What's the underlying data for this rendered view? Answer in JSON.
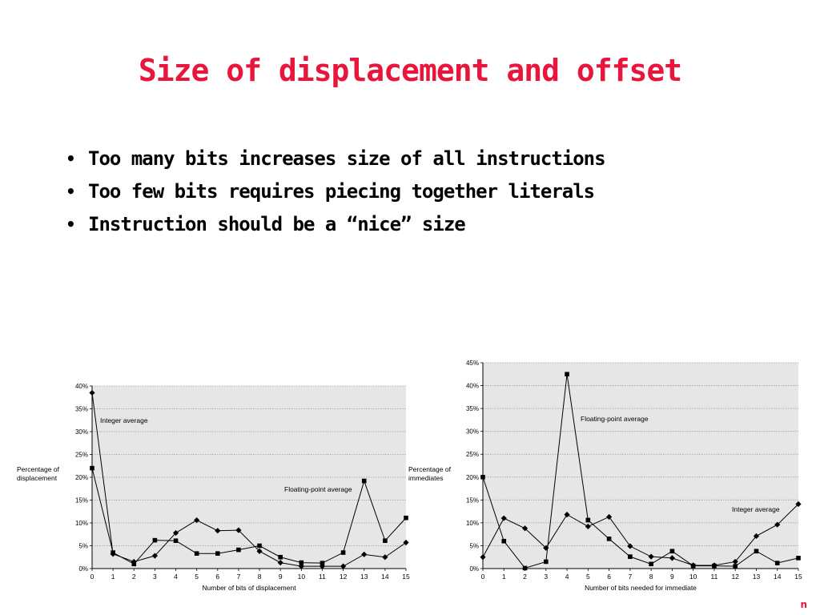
{
  "slide": {
    "title": "Size of displacement and offset",
    "bullets": [
      "Too many bits increases size of all instructions",
      "Too few bits requires piecing together literals",
      "Instruction should be a “nice” size"
    ],
    "corner_mark": "n"
  },
  "chart_data": [
    {
      "type": "line",
      "xlabel": "Number of bits of displacement",
      "ylabel": [
        "Percentage of",
        "displacement"
      ],
      "x": [
        0,
        1,
        2,
        3,
        4,
        5,
        6,
        7,
        8,
        9,
        10,
        11,
        12,
        13,
        14,
        15
      ],
      "ylim": [
        0,
        40
      ],
      "yticks": [
        "0%",
        "5%",
        "10%",
        "15%",
        "20%",
        "25%",
        "30%",
        "35%",
        "40%"
      ],
      "grid": true,
      "series": [
        {
          "name": "Integer average",
          "marker": "diamond",
          "values": [
            38.5,
            3.2,
            1.5,
            2.8,
            7.8,
            10.6,
            8.3,
            8.4,
            3.8,
            1.3,
            0.5,
            0.5,
            0.5,
            3.1,
            2.5,
            5.7
          ]
        },
        {
          "name": "Floating-point average",
          "marker": "square",
          "values": [
            22.0,
            3.5,
            1.0,
            6.2,
            6.1,
            3.3,
            3.3,
            4.1,
            5.0,
            2.5,
            1.3,
            1.2,
            3.5,
            19.2,
            6.1,
            11.1
          ]
        }
      ]
    },
    {
      "type": "line",
      "xlabel": "Number of bits needed for immediate",
      "ylabel": [
        "Percentage of",
        "immediates"
      ],
      "x": [
        0,
        1,
        2,
        3,
        4,
        5,
        6,
        7,
        8,
        9,
        10,
        11,
        12,
        13,
        14,
        15
      ],
      "ylim": [
        0,
        45
      ],
      "yticks": [
        "0%",
        "5%",
        "10%",
        "15%",
        "20%",
        "25%",
        "30%",
        "35%",
        "40%",
        "45%"
      ],
      "grid": true,
      "series": [
        {
          "name": "Floating-point average",
          "marker": "square",
          "values": [
            20.0,
            6.0,
            0.1,
            1.5,
            42.5,
            10.6,
            6.5,
            2.6,
            1.0,
            3.8,
            0.6,
            0.6,
            0.5,
            3.8,
            1.2,
            2.3
          ]
        },
        {
          "name": "Integer average",
          "marker": "diamond",
          "values": [
            2.5,
            11.0,
            8.8,
            4.5,
            11.8,
            9.2,
            11.3,
            4.9,
            2.6,
            2.3,
            0.7,
            0.7,
            1.5,
            7.1,
            9.6,
            14.1
          ]
        }
      ]
    }
  ]
}
